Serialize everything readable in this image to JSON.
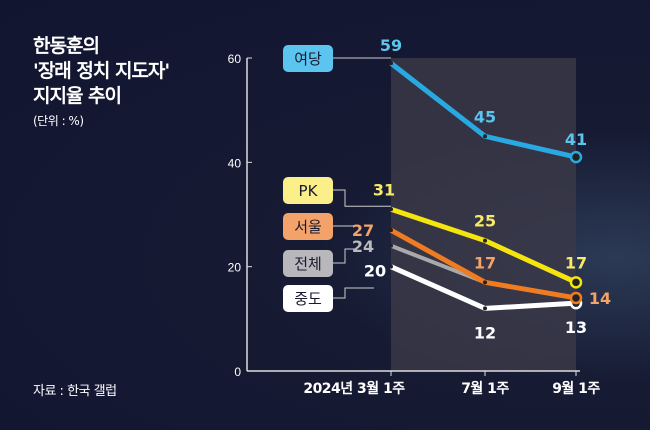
{
  "title_lines": [
    "한동훈의",
    "'장래 정치 지도자'",
    "지지율 추이"
  ],
  "unit": "(단위 : %)",
  "source": "자료 : 한국 갤럽",
  "chart_data": {
    "type": "line",
    "title": "한동훈의 '장래 정치 지도자' 지지율 추이",
    "ylabel": "%",
    "ylim": [
      0,
      60
    ],
    "yticks": [
      "0",
      "20",
      "40",
      "60"
    ],
    "categories": [
      "2024년 3월 1주",
      "7월 1주",
      "9월 1주"
    ],
    "series": [
      {
        "name": "여당",
        "color": "#29a9e1",
        "labelBg": "#5bc4ef",
        "labelColor": "#1a1a2e",
        "values": [
          59,
          45,
          41
        ],
        "labels": [
          "59",
          "45",
          "41"
        ]
      },
      {
        "name": "PK",
        "color": "#f5e50f",
        "labelBg": "#fbef8a",
        "labelColor": "#1a1a2e",
        "values": [
          31,
          25,
          17
        ],
        "labels": [
          "31",
          "25",
          "17"
        ]
      },
      {
        "name": "서울",
        "color": "#f07c21",
        "labelBg": "#f3a26a",
        "labelColor": "#1a1a2e",
        "values": [
          27,
          17,
          14
        ],
        "labels": [
          "27",
          "17",
          "14"
        ]
      },
      {
        "name": "전체",
        "color": "#a9a9ad",
        "labelBg": "#b8b8bc",
        "labelColor": "#1a1a2e",
        "values": [
          24,
          17,
          null
        ],
        "labels": [
          "24",
          "",
          ""
        ]
      },
      {
        "name": "중도",
        "color": "#ffffff",
        "labelBg": "#ffffff",
        "labelColor": "#1a1a2e",
        "values": [
          20,
          12,
          13
        ],
        "labels": [
          "20",
          "12",
          "13"
        ]
      }
    ]
  }
}
